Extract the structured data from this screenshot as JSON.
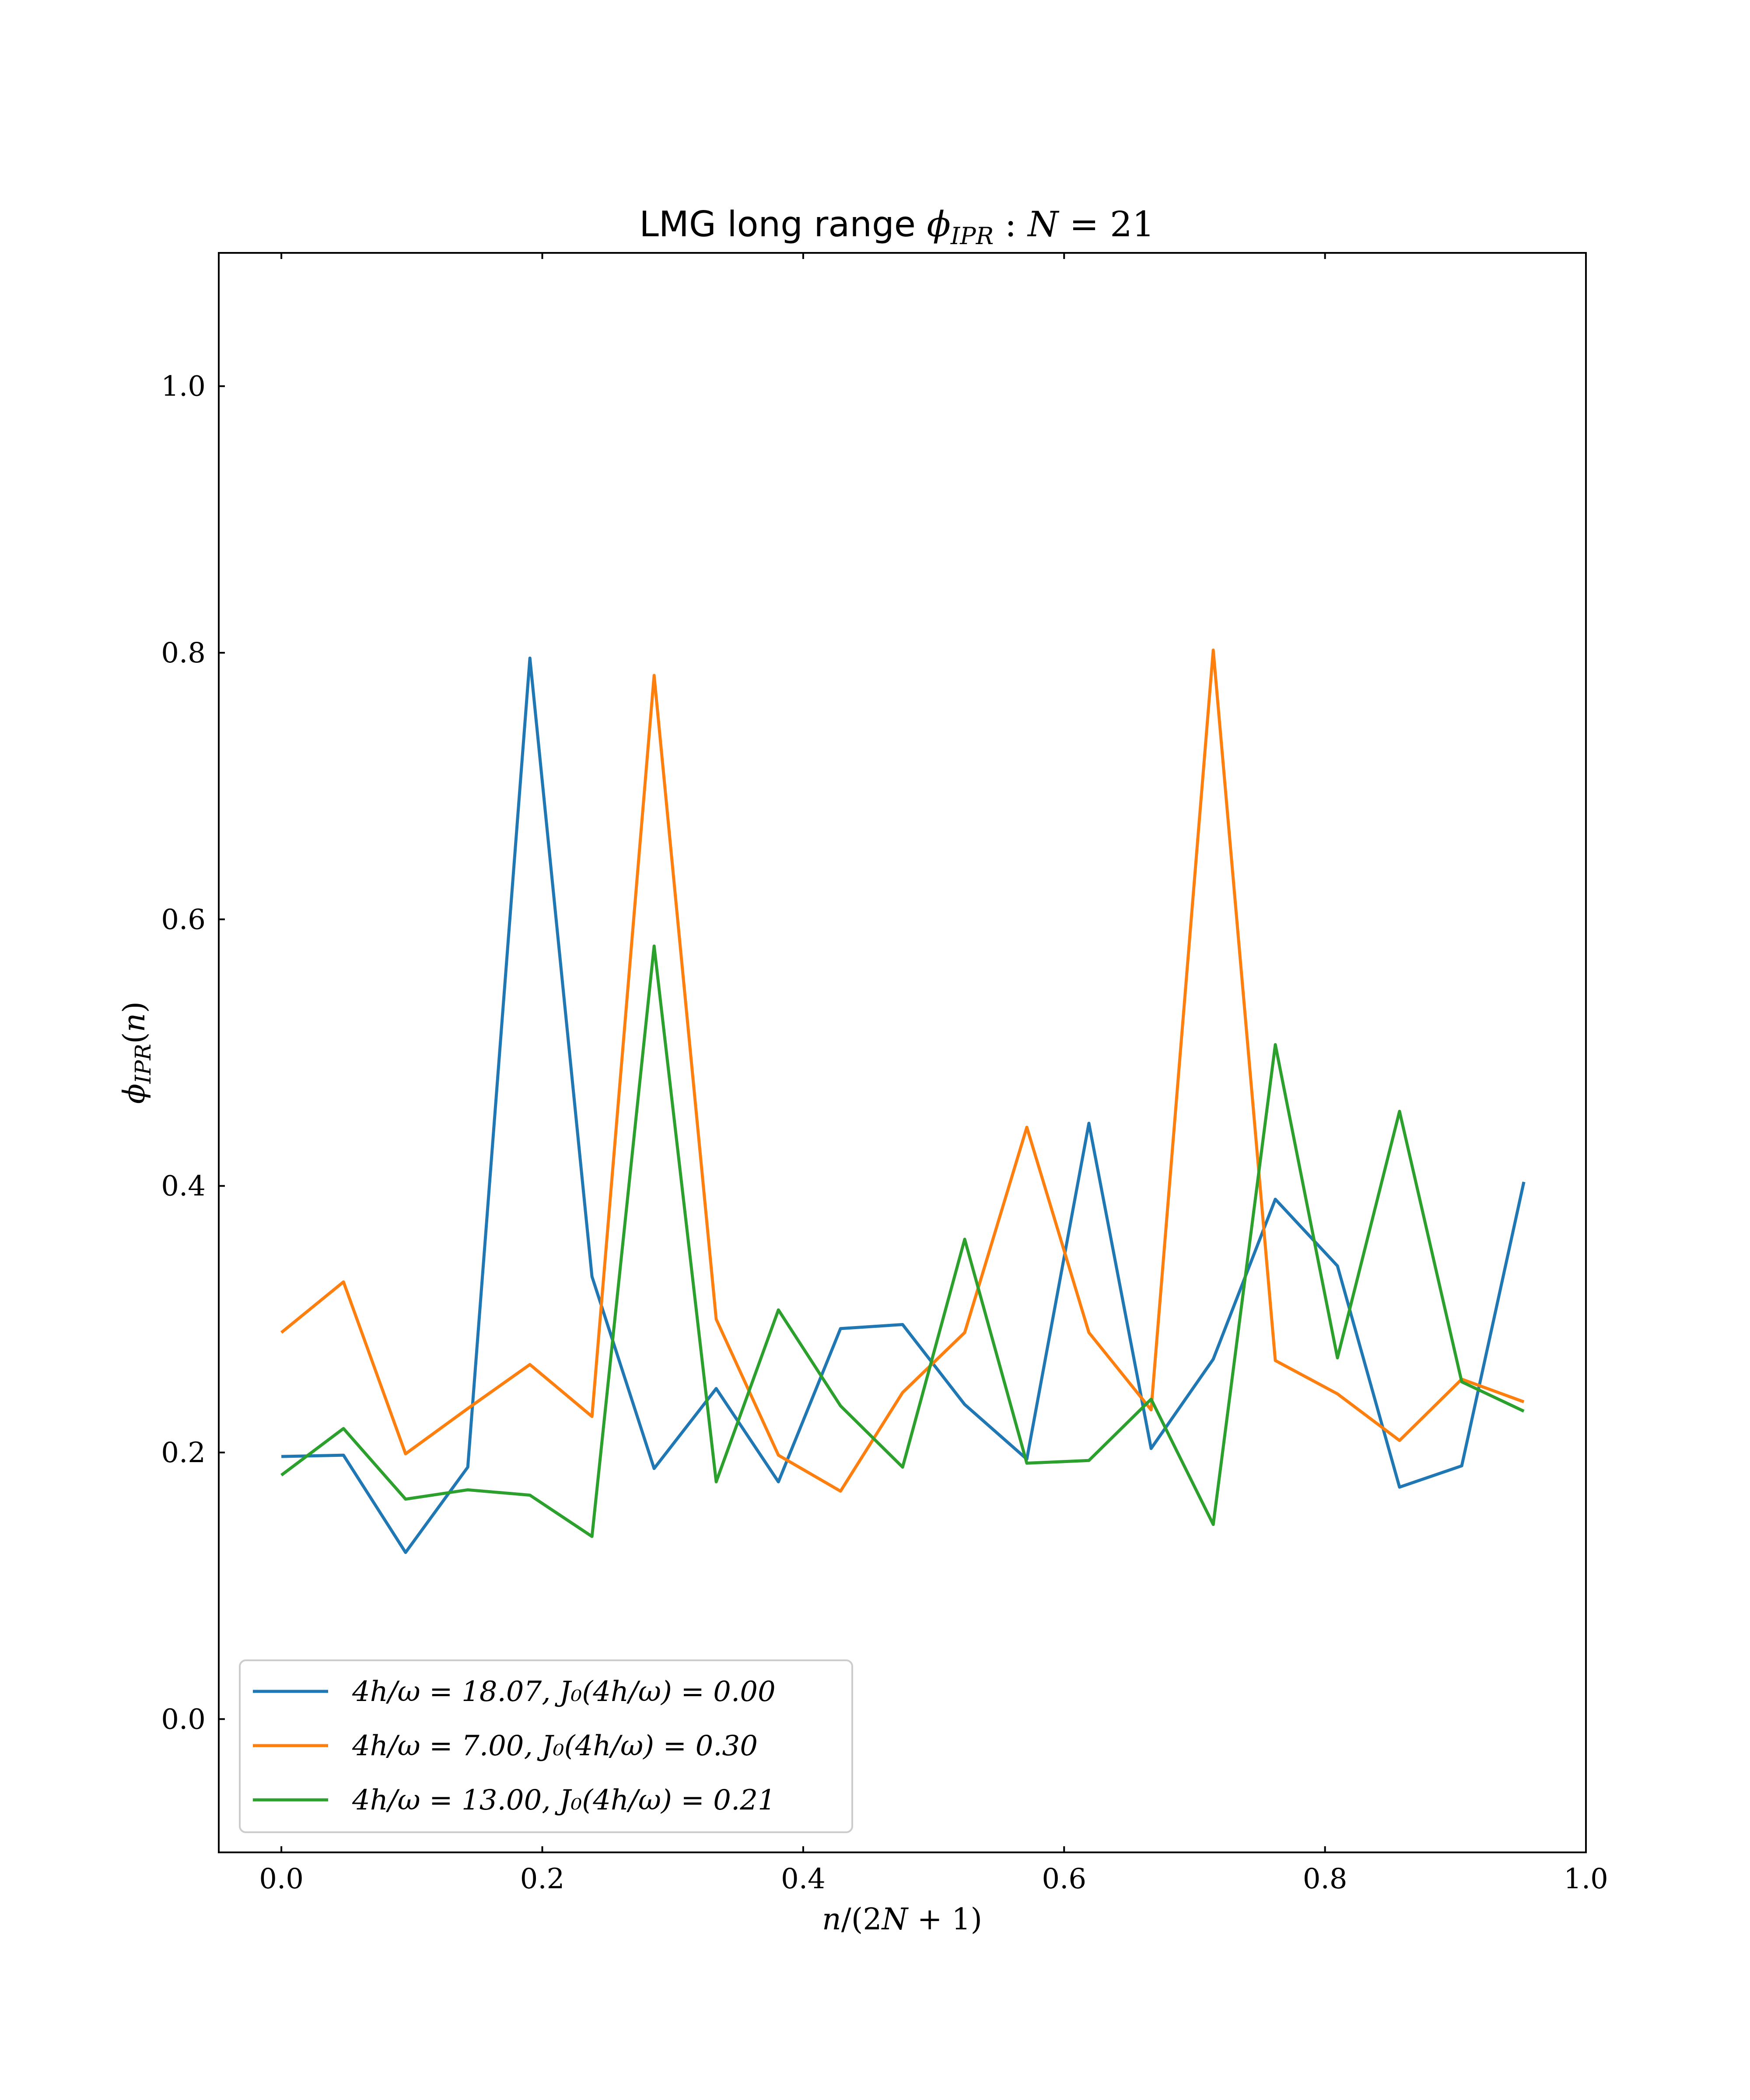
{
  "chart_data": {
    "type": "line",
    "title": "LMG long range ϕ_IPR : N = 21",
    "xlabel": "n/(2N + 1)",
    "ylabel": "ϕ_IPR(n)",
    "xlim": [
      -0.048,
      1.0
    ],
    "ylim": [
      -0.1,
      1.1
    ],
    "xticks": [
      0.0,
      0.2,
      0.4,
      0.6,
      0.8,
      1.0
    ],
    "xtick_labels": [
      "0.0",
      "0.2",
      "0.4",
      "0.6",
      "0.8",
      "1.0"
    ],
    "yticks": [
      0.0,
      0.2,
      0.4,
      0.6,
      0.8,
      1.0
    ],
    "ytick_labels": [
      "0.0",
      "0.2",
      "0.4",
      "0.6",
      "0.8",
      "1.0"
    ],
    "grid": false,
    "legend_position": "lower-left",
    "x": [
      0.0,
      0.0476,
      0.0952,
      0.1429,
      0.1905,
      0.2381,
      0.2857,
      0.3333,
      0.381,
      0.4286,
      0.4762,
      0.5238,
      0.5714,
      0.619,
      0.6667,
      0.7143,
      0.7619,
      0.8095,
      0.8571,
      0.9048,
      0.9524
    ],
    "series": [
      {
        "name": "4h/ω = 18.07, J₀(4h/ω) = 0.00",
        "color": "#1f77b4",
        "values": [
          0.197,
          0.198,
          0.125,
          0.189,
          0.796,
          0.332,
          0.188,
          0.248,
          0.178,
          0.293,
          0.296,
          0.236,
          0.195,
          0.447,
          0.203,
          0.27,
          0.39,
          0.34,
          0.174,
          0.19,
          0.403
        ]
      },
      {
        "name": "4h/ω = 7.00, J₀(4h/ω) = 0.30",
        "color": "#ff7f0e",
        "values": [
          0.29,
          0.328,
          0.199,
          0.233,
          0.266,
          0.227,
          0.783,
          0.3,
          0.198,
          0.171,
          0.245,
          0.29,
          0.444,
          0.29,
          0.232,
          0.802,
          0.269,
          0.244,
          0.209,
          0.255,
          0.238
        ]
      },
      {
        "name": "4h/ω = 13.00, J₀(4h/ω) = 0.21",
        "color": "#2ca02c",
        "values": [
          0.183,
          0.218,
          0.165,
          0.172,
          0.168,
          0.137,
          0.58,
          0.178,
          0.307,
          0.235,
          0.189,
          0.36,
          0.192,
          0.194,
          0.24,
          0.146,
          0.506,
          0.271,
          0.456,
          0.253,
          0.231
        ]
      }
    ]
  }
}
